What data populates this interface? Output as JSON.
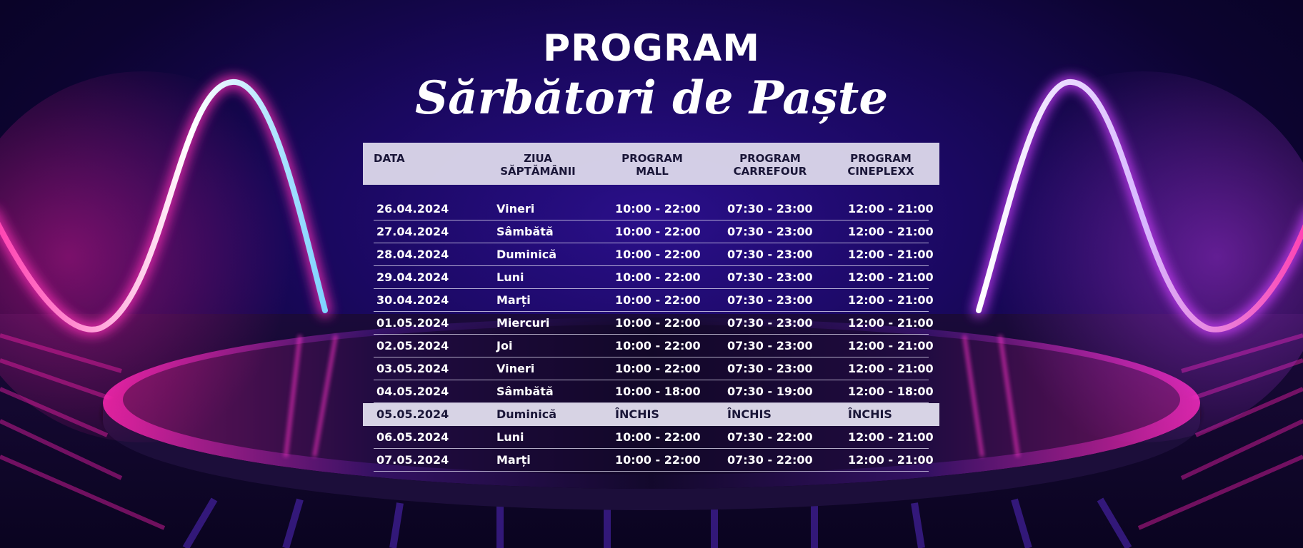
{
  "header": {
    "title": "PROGRAM",
    "subtitle": "Sărbători de Paște"
  },
  "table": {
    "columns": [
      "DATA",
      "ZIUA\nSĂPTĂMÂNII",
      "PROGRAM\nMALL",
      "PROGRAM\nCARREFOUR",
      "PROGRAM\nCINEPLEXX"
    ],
    "rows": [
      {
        "date": "26.04.2024",
        "day": "Vineri",
        "mall": "10:00 - 22:00",
        "carrefour": "07:30 - 23:00",
        "cineplexx": "12:00 - 21:00",
        "closed": false
      },
      {
        "date": "27.04.2024",
        "day": "Sâmbătă",
        "mall": "10:00 - 22:00",
        "carrefour": "07:30 - 23:00",
        "cineplexx": "12:00 - 21:00",
        "closed": false
      },
      {
        "date": "28.04.2024",
        "day": "Duminică",
        "mall": "10:00 - 22:00",
        "carrefour": "07:30 - 23:00",
        "cineplexx": "12:00 - 21:00",
        "closed": false
      },
      {
        "date": "29.04.2024",
        "day": "Luni",
        "mall": "10:00 - 22:00",
        "carrefour": "07:30 - 23:00",
        "cineplexx": "12:00 - 21:00",
        "closed": false
      },
      {
        "date": "30.04.2024",
        "day": "Marți",
        "mall": "10:00 - 22:00",
        "carrefour": "07:30 - 23:00",
        "cineplexx": "12:00 - 21:00",
        "closed": false
      },
      {
        "date": "01.05.2024",
        "day": "Miercuri",
        "mall": "10:00 - 22:00",
        "carrefour": "07:30 - 23:00",
        "cineplexx": "12:00 - 21:00",
        "closed": false
      },
      {
        "date": "02.05.2024",
        "day": "Joi",
        "mall": "10:00 - 22:00",
        "carrefour": "07:30 - 23:00",
        "cineplexx": "12:00 - 21:00",
        "closed": false
      },
      {
        "date": "03.05.2024",
        "day": "Vineri",
        "mall": "10:00 - 22:00",
        "carrefour": "07:30 - 23:00",
        "cineplexx": "12:00 - 21:00",
        "closed": false
      },
      {
        "date": "04.05.2024",
        "day": "Sâmbătă",
        "mall": "10:00 - 18:00",
        "carrefour": "07:30 - 19:00",
        "cineplexx": "12:00 - 18:00",
        "closed": false
      },
      {
        "date": "05.05.2024",
        "day": "Duminică",
        "mall": "ÎNCHIS",
        "carrefour": "ÎNCHIS",
        "cineplexx": "ÎNCHIS",
        "closed": true
      },
      {
        "date": "06.05.2024",
        "day": "Luni",
        "mall": "10:00 - 22:00",
        "carrefour": "07:30 - 22:00",
        "cineplexx": "12:00 - 21:00",
        "closed": false
      },
      {
        "date": "07.05.2024",
        "day": "Marți",
        "mall": "10:00 - 22:00",
        "carrefour": "07:30 - 22:00",
        "cineplexx": "12:00 - 21:00",
        "closed": false
      }
    ]
  },
  "colors": {
    "neon_pink": "#ff2fb8",
    "neon_violet": "#7a3dff",
    "header_band": "#e1deee",
    "background": "#1a0860"
  }
}
